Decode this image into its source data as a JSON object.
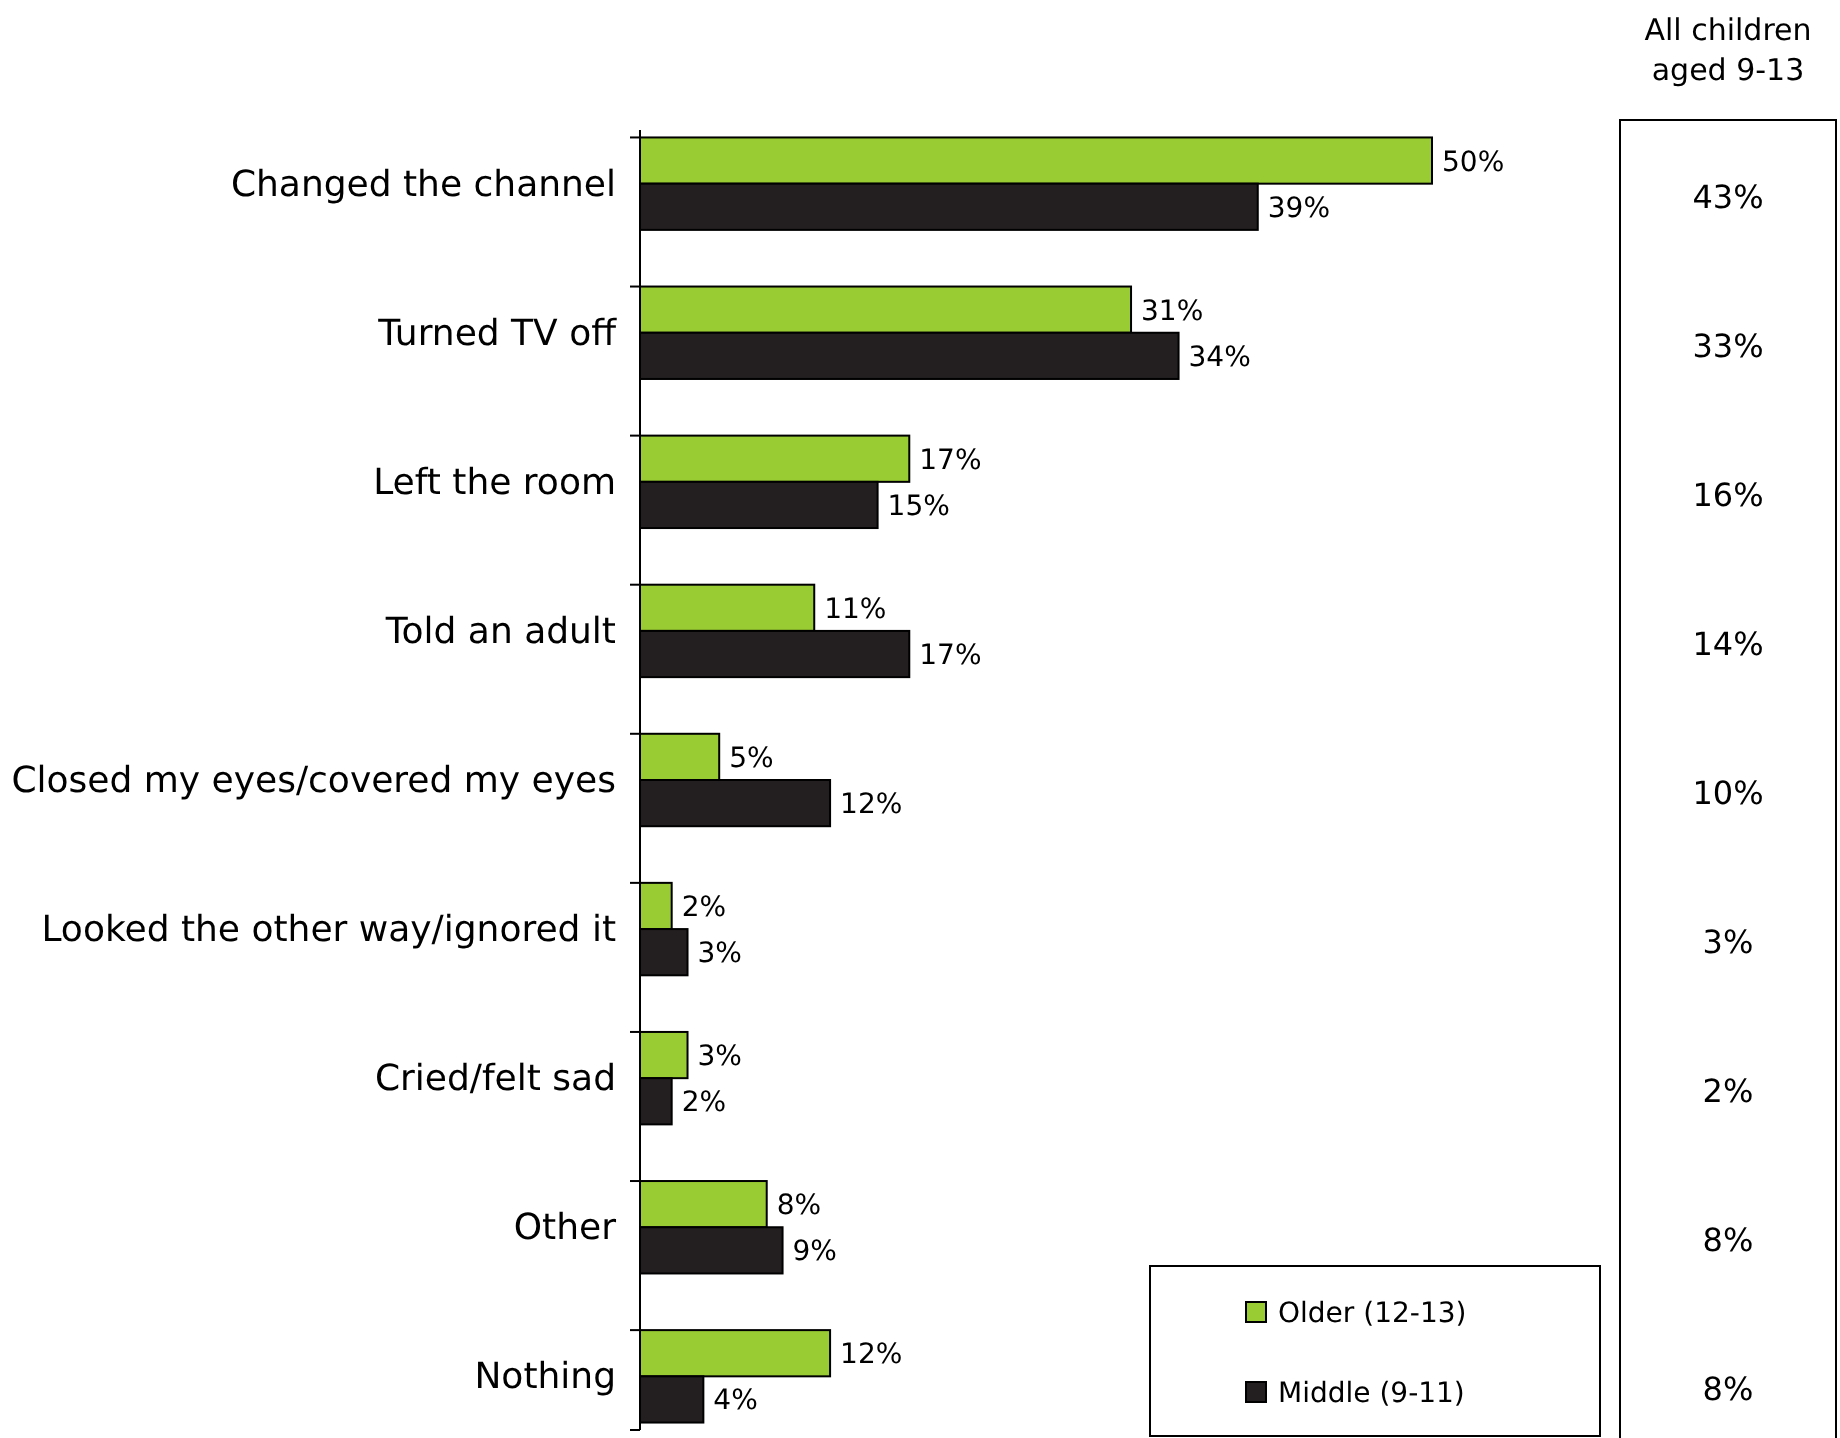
{
  "chart_data": [
    {
      "type": "bar",
      "orientation": "horizontal",
      "categories": [
        "Changed the channel",
        "Turned TV off",
        "Left the room",
        "Told an adult",
        "Closed my eyes/covered my eyes",
        "Looked the other way/ignored it",
        "Cried/felt sad",
        "Other",
        "Nothing"
      ],
      "series": [
        {
          "name": "Older (12-13)",
          "color": "#99cc33",
          "values": [
            50,
            31,
            17,
            11,
            5,
            2,
            3,
            8,
            12
          ],
          "value_labels": [
            "50%",
            "31%",
            "17%",
            "11%",
            "5%",
            "2%",
            "3%",
            "8%",
            "12%"
          ]
        },
        {
          "name": "Middle (9-11)",
          "color": "#231f20",
          "values": [
            39,
            34,
            15,
            17,
            12,
            3,
            2,
            9,
            4
          ],
          "value_labels": [
            "39%",
            "34%",
            "15%",
            "17%",
            "12%",
            "3%",
            "2%",
            "9%",
            "4%"
          ]
        }
      ],
      "legend": "bottom right",
      "grid": false
    },
    {
      "type": "other",
      "title": "All children aged 9-13",
      "annotations": [
        "43%",
        "33%",
        "16%",
        "14%",
        "10%",
        "3%",
        "2%",
        "8%",
        "8%"
      ]
    }
  ]
}
